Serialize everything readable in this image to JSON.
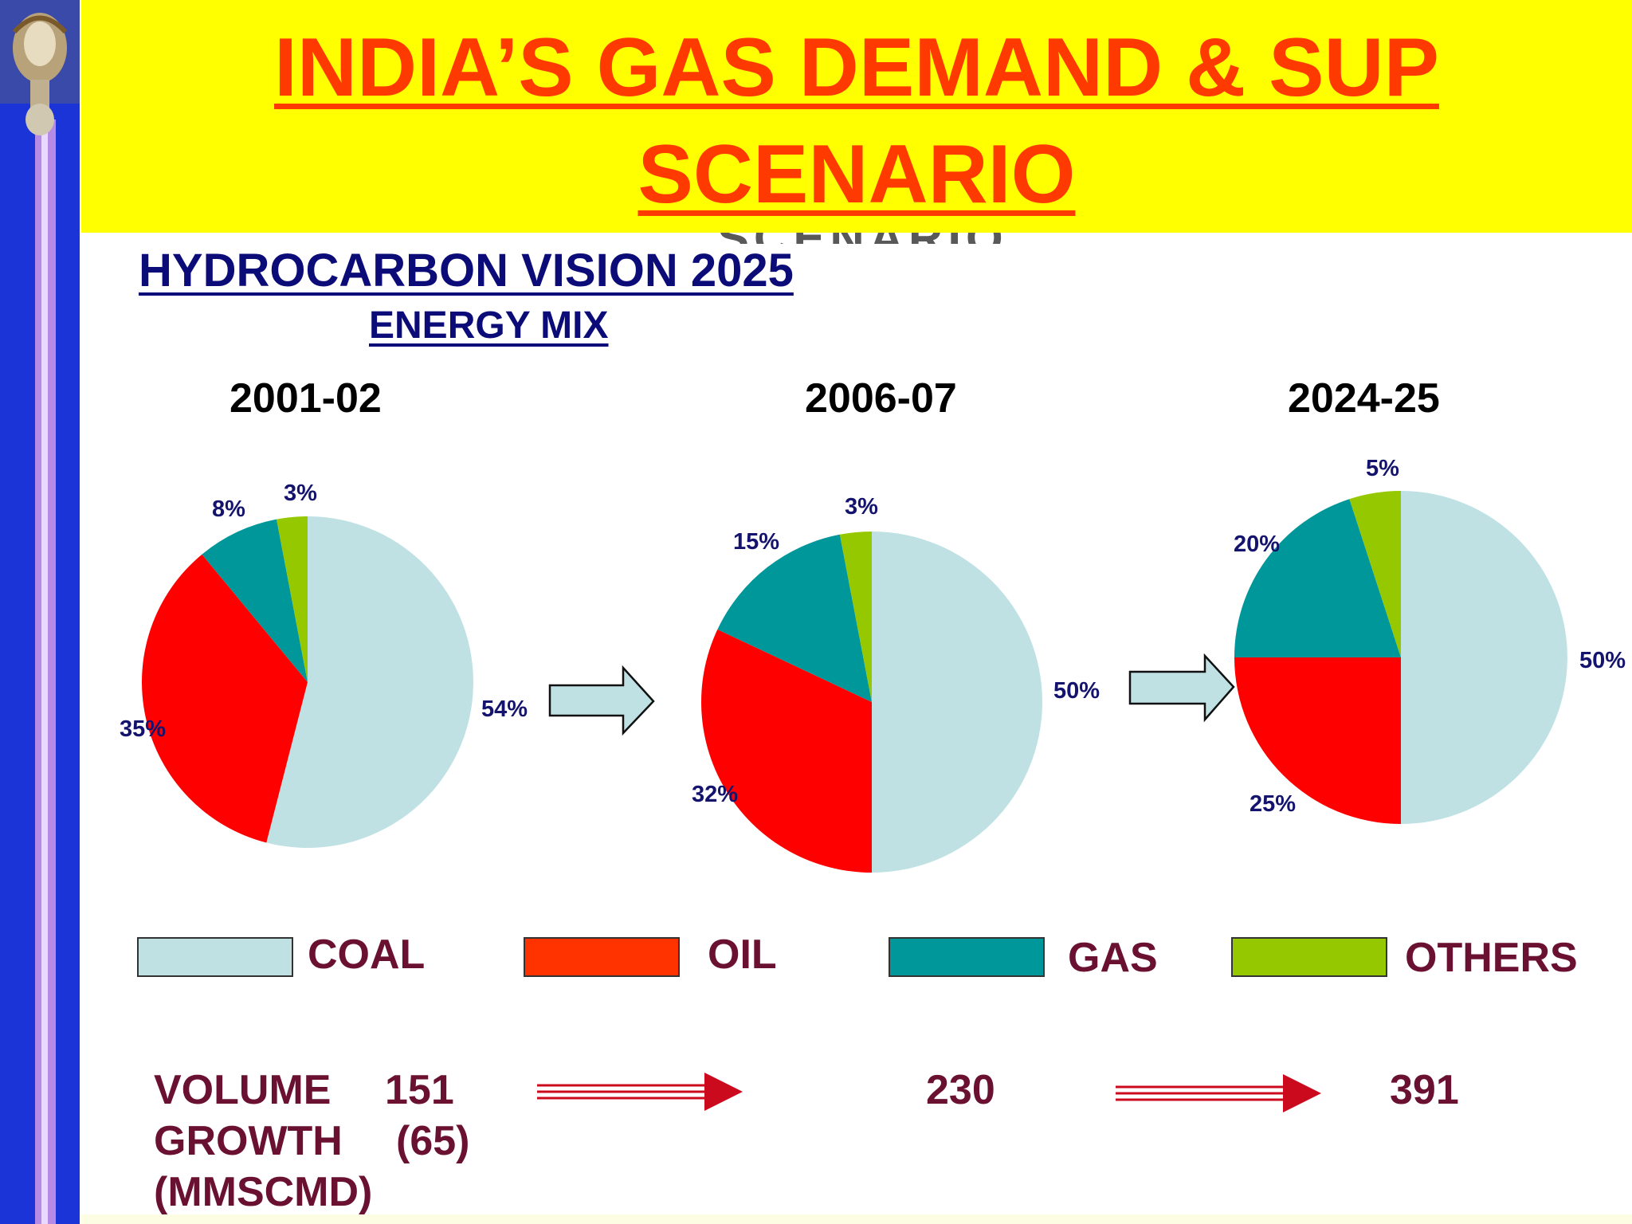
{
  "header": {
    "title_line1": "INDIA’S GAS DEMAND & SUP",
    "title_line2": "SCENARIO",
    "ghost_text": "SCENARIO"
  },
  "subtitle": "HYDROCARBON VISION 2025",
  "subtitle2": "ENERGY MIX",
  "colors": {
    "coal": "#bfe1e4",
    "oil": "#ff0000",
    "gas": "#00979a",
    "others": "#96c800",
    "legend_oil": "#ff3300",
    "header_bg": "#ffff00",
    "title": "#ff3a00",
    "arrow_red": "#cc0a1e"
  },
  "chart_data": [
    {
      "type": "pie",
      "title": "2001-02",
      "categories": [
        "COAL",
        "OIL",
        "GAS",
        "OTHERS"
      ],
      "values": [
        54,
        35,
        8,
        3
      ],
      "labels": [
        "54%",
        "35%",
        "8%",
        "3%"
      ]
    },
    {
      "type": "pie",
      "title": "2006-07",
      "categories": [
        "COAL",
        "OIL",
        "GAS",
        "OTHERS"
      ],
      "values": [
        50,
        32,
        15,
        3
      ],
      "labels": [
        "50%",
        "32%",
        "15%",
        "3%"
      ]
    },
    {
      "type": "pie",
      "title": "2024-25",
      "categories": [
        "COAL",
        "OIL",
        "GAS",
        "OTHERS"
      ],
      "values": [
        50,
        25,
        20,
        5
      ],
      "labels": [
        "50%",
        "25%",
        "20%",
        "5%"
      ]
    }
  ],
  "legend": [
    "COAL",
    "OIL",
    "GAS",
    "OTHERS"
  ],
  "volume": {
    "label_volume": "VOLUME",
    "label_growth": "GROWTH",
    "label_unit": "(MMSCMD)",
    "v1": "151",
    "growth1": "(65)",
    "v2": "230",
    "v3": "391"
  }
}
